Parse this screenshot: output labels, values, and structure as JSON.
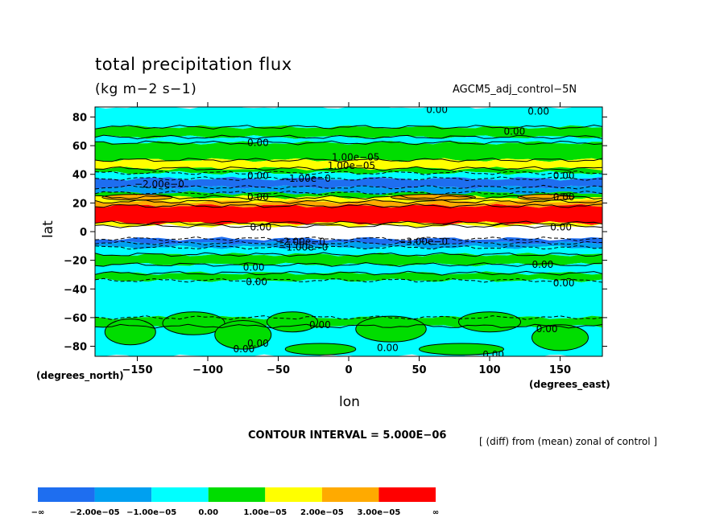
{
  "chart_data": {
    "type": "heatmap",
    "title": "total precipitation flux",
    "units": "(kg m−2 s−1)",
    "run_label": "AGCM5_adj_control−5N",
    "xlabel": "lon",
    "ylabel": "lat",
    "x_unit_label": "(degrees_east)",
    "y_unit_label": "(degrees_north)",
    "xlim": [
      -180,
      180
    ],
    "ylim": [
      -87,
      87
    ],
    "x_ticks": [
      -150,
      -100,
      -50,
      0,
      50,
      100,
      150
    ],
    "x_tick_labels": [
      "−150",
      "−100",
      "−50",
      "0",
      "50",
      "100",
      "150"
    ],
    "y_ticks": [
      80,
      60,
      40,
      20,
      0,
      -20,
      -40,
      -60,
      -80
    ],
    "y_tick_labels": [
      "80",
      "60",
      "40",
      "20",
      "0",
      "−20",
      "−40",
      "−60",
      "−80"
    ],
    "contour_interval": "CONTOUR INTERVAL = 5.000E−06",
    "note": "[ (diff) from (mean) zonal of control ]",
    "colorbar": {
      "levels": [
        "−∞",
        "−2.00e−05",
        "−1.00e−05",
        "0.00",
        "1.00e−05",
        "2.00e−05",
        "3.00e−05",
        "∞"
      ],
      "colors": [
        "#1e6ef0",
        "#00a0f0",
        "#00ffff",
        "#00dd00",
        "#ffff00",
        "#ffaa00",
        "#ff0000"
      ]
    },
    "bands": [
      {
        "lat_from": 87,
        "lat_to": 73,
        "color": "#00ffff"
      },
      {
        "lat_from": 73,
        "lat_to": 66,
        "color": "#00dd00"
      },
      {
        "lat_from": 66,
        "lat_to": 62,
        "color": "#00ffff"
      },
      {
        "lat_from": 62,
        "lat_to": 50,
        "color": "#00dd00"
      },
      {
        "lat_from": 50,
        "lat_to": 44,
        "color": "#ffff00"
      },
      {
        "lat_from": 44,
        "lat_to": 41,
        "color": "#00dd00"
      },
      {
        "lat_from": 41,
        "lat_to": 37,
        "color": "#00ffff"
      },
      {
        "lat_from": 37,
        "lat_to": 31,
        "color": "#1e6ef0"
      },
      {
        "lat_from": 31,
        "lat_to": 27,
        "color": "#00a0f0"
      },
      {
        "lat_from": 27,
        "lat_to": 24,
        "color": "#00dd00"
      },
      {
        "lat_from": 24,
        "lat_to": 21,
        "color": "#ffff00"
      },
      {
        "lat_from": 21,
        "lat_to": 18,
        "color": "#ffaa00"
      },
      {
        "lat_from": 18,
        "lat_to": 6,
        "color": "#ff0000"
      },
      {
        "lat_from": 6,
        "lat_to": 4,
        "color": "#ffff00"
      },
      {
        "lat_from": 4,
        "lat_to": -5,
        "color": "#ffffff"
      },
      {
        "lat_from": -5,
        "lat_to": -8,
        "color": "#1e6ef0"
      },
      {
        "lat_from": -8,
        "lat_to": -11,
        "color": "#00a0f0"
      },
      {
        "lat_from": -11,
        "lat_to": -16,
        "color": "#00ffff"
      },
      {
        "lat_from": -16,
        "lat_to": -23,
        "color": "#00dd00"
      },
      {
        "lat_from": -23,
        "lat_to": -29,
        "color": "#00ffff"
      },
      {
        "lat_from": -29,
        "lat_to": -34,
        "color": "#00dd00"
      },
      {
        "lat_from": -34,
        "lat_to": -60,
        "color": "#00ffff"
      },
      {
        "lat_from": -60,
        "lat_to": -66,
        "color": "#00dd00"
      },
      {
        "lat_from": -66,
        "lat_to": -87,
        "color": "#00ffff"
      }
    ],
    "blobs": [
      {
        "lon": -155,
        "lat": -70,
        "rlon": 18,
        "rlat": 9,
        "color": "#00dd00"
      },
      {
        "lon": -110,
        "lat": -64,
        "rlon": 22,
        "rlat": 8,
        "color": "#00dd00"
      },
      {
        "lon": -75,
        "lat": -72,
        "rlon": 20,
        "rlat": 10,
        "color": "#00dd00"
      },
      {
        "lon": -40,
        "lat": -63,
        "rlon": 18,
        "rlat": 7,
        "color": "#00dd00"
      },
      {
        "lon": 30,
        "lat": -68,
        "rlon": 25,
        "rlat": 9,
        "color": "#00dd00"
      },
      {
        "lon": 100,
        "lat": -63,
        "rlon": 22,
        "rlat": 7,
        "color": "#00dd00"
      },
      {
        "lon": 150,
        "lat": -74,
        "rlon": 20,
        "rlat": 9,
        "color": "#00dd00"
      },
      {
        "lon": -20,
        "lat": -82,
        "rlon": 25,
        "rlat": 4,
        "color": "#00dd00"
      },
      {
        "lon": 80,
        "lat": -82,
        "rlon": 30,
        "rlat": 4,
        "color": "#00dd00"
      },
      {
        "lon": -150,
        "lat": 24,
        "rlon": 25,
        "rlat": 2,
        "color": "#ffaa00"
      },
      {
        "lon": 60,
        "lat": 24,
        "rlon": 30,
        "rlat": 2,
        "color": "#ffaa00"
      },
      {
        "lon": 140,
        "lat": 24,
        "rlon": 20,
        "rlat": 2,
        "color": "#ffaa00"
      }
    ],
    "contour_labels": [
      {
        "text": "0.00",
        "lon": 55,
        "lat": 85
      },
      {
        "text": "0.00",
        "lon": 127,
        "lat": 84
      },
      {
        "text": "0.00",
        "lon": 110,
        "lat": 70
      },
      {
        "text": "0.00",
        "lon": -72,
        "lat": 62
      },
      {
        "text": "1.00e−05",
        "lon": -12,
        "lat": 52
      },
      {
        "text": "1.00e−05",
        "lon": -15,
        "lat": 46
      },
      {
        "text": "0.00",
        "lon": -72,
        "lat": 39
      },
      {
        "text": "−1.00e−0",
        "lon": -48,
        "lat": 37
      },
      {
        "text": "−2.00e−0",
        "lon": -152,
        "lat": 33
      },
      {
        "text": "0.00",
        "lon": 145,
        "lat": 39
      },
      {
        "text": "0.00",
        "lon": -72,
        "lat": 24
      },
      {
        "text": "0.00",
        "lon": 145,
        "lat": 24
      },
      {
        "text": "0.00",
        "lon": -70,
        "lat": 3
      },
      {
        "text": "0.00",
        "lon": 143,
        "lat": 3
      },
      {
        "text": "−3.00e−0",
        "lon": 35,
        "lat": -7
      },
      {
        "text": "−2.00e−0",
        "lon": -52,
        "lat": -7
      },
      {
        "text": "−1.00e−0",
        "lon": -50,
        "lat": -11
      },
      {
        "text": "0.00",
        "lon": -75,
        "lat": -25
      },
      {
        "text": "0.00",
        "lon": 130,
        "lat": -23
      },
      {
        "text": "0.00",
        "lon": -73,
        "lat": -35
      },
      {
        "text": "0.00",
        "lon": 145,
        "lat": -36
      },
      {
        "text": "0.00",
        "lon": -28,
        "lat": -65
      },
      {
        "text": "0.00",
        "lon": 133,
        "lat": -68
      },
      {
        "text": "0.00",
        "lon": -72,
        "lat": -78
      },
      {
        "text": "0.00",
        "lon": -82,
        "lat": -82
      },
      {
        "text": "0.00",
        "lon": 20,
        "lat": -81
      },
      {
        "text": "0.00",
        "lon": 95,
        "lat": -86
      }
    ]
  }
}
